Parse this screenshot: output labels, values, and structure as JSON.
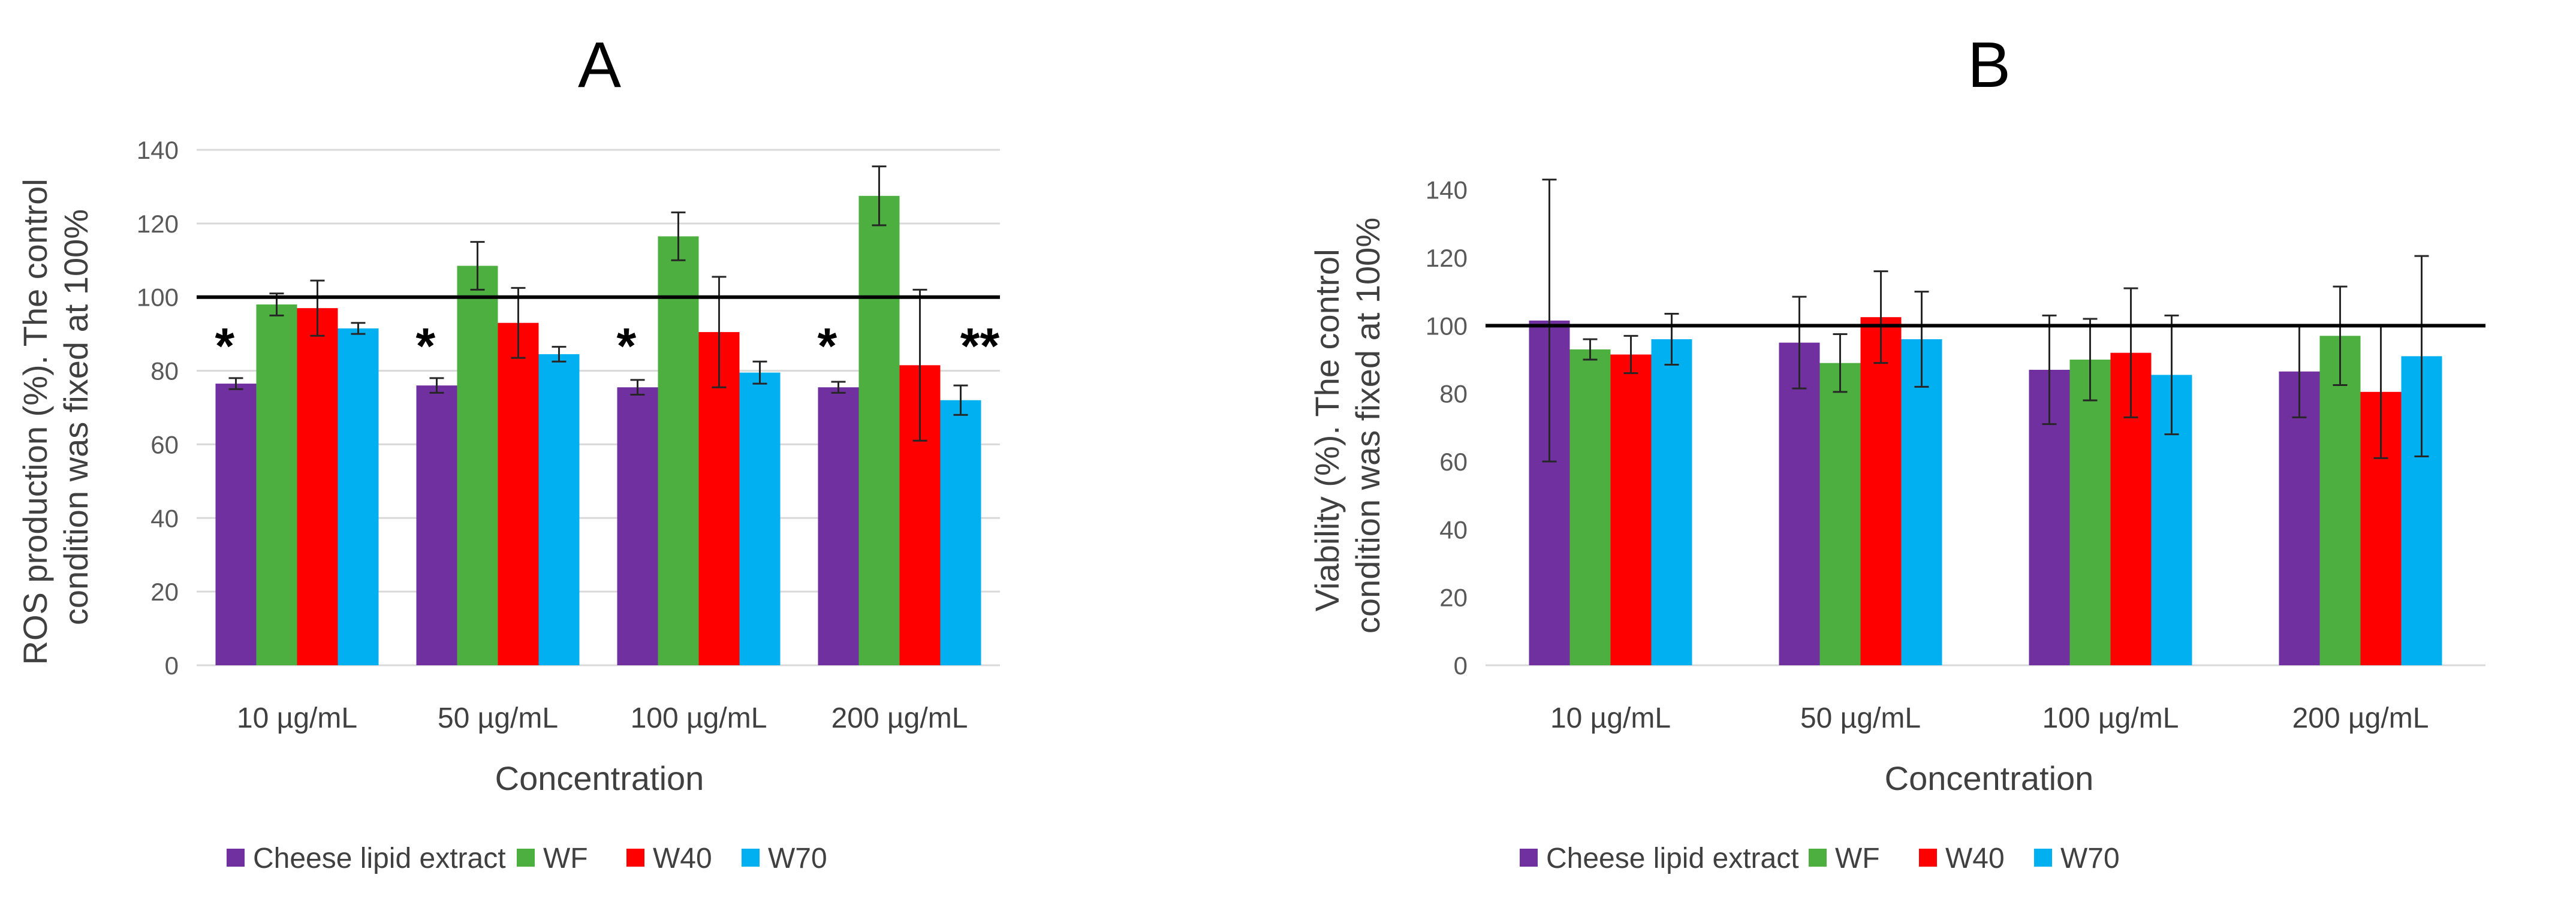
{
  "chart_data": [
    {
      "type": "bar",
      "panel": "A",
      "title": "A",
      "xlabel": "Concentration",
      "ylabel_lines": [
        "ROS production (%). The control",
        "condition was fixed at 100%"
      ],
      "categories": [
        "10 µg/mL",
        "50 µg/mL",
        "100 µg/mL",
        "200 µg/mL"
      ],
      "ylim": [
        0,
        140
      ],
      "yticks": [
        "0",
        "20",
        "40",
        "60",
        "80",
        "100",
        "120",
        "140"
      ],
      "reference_line": 100,
      "grid": true,
      "series": [
        {
          "name": "Cheese lipid extract",
          "color": "#7030a0",
          "values": [
            76.5,
            76,
            75.5,
            75.5
          ],
          "errors": [
            1.5,
            2,
            2,
            1.5
          ]
        },
        {
          "name": "WF",
          "color": "#4caf3f",
          "values": [
            98,
            108.5,
            116.5,
            127.5
          ],
          "errors": [
            3,
            6.5,
            6.5,
            8
          ]
        },
        {
          "name": "W40",
          "color": "#ff0000",
          "values": [
            97,
            93,
            90.5,
            81.5
          ],
          "errors": [
            7.5,
            9.5,
            15,
            20.5
          ]
        },
        {
          "name": "W70",
          "color": "#00b0f0",
          "values": [
            91.5,
            84.5,
            79.5,
            72
          ],
          "errors": [
            1.5,
            2,
            3,
            4
          ]
        }
      ],
      "annotations": [
        {
          "category": "10 µg/mL",
          "text": "*"
        },
        {
          "category": "50 µg/mL",
          "text": "*"
        },
        {
          "category": "100 µg/mL",
          "text": "*"
        },
        {
          "category": "200 µg/mL",
          "text": "*"
        },
        {
          "category": "200 µg/mL",
          "text": "**"
        }
      ],
      "legend": {
        "position": "bottom"
      }
    },
    {
      "type": "bar",
      "panel": "B",
      "title": "B",
      "xlabel": "Concentration",
      "ylabel_lines": [
        "Viability (%). The control",
        "condition was fixed at 100%"
      ],
      "categories": [
        "10 µg/mL",
        "50 µg/mL",
        "100 µg/mL",
        "200 µg/mL"
      ],
      "ylim": [
        0,
        150
      ],
      "yticks": [
        "0",
        "20",
        "40",
        "60",
        "80",
        "100",
        "120",
        "140"
      ],
      "reference_line": 100,
      "grid": false,
      "series": [
        {
          "name": "Cheese lipid extract",
          "color": "#7030a0",
          "values": [
            101.5,
            95,
            87,
            86.5
          ],
          "errors": [
            41.5,
            13.5,
            16,
            13.5
          ]
        },
        {
          "name": "WF",
          "color": "#4caf3f",
          "values": [
            93,
            89,
            90,
            97
          ],
          "errors": [
            3,
            8.5,
            12,
            14.5
          ]
        },
        {
          "name": "W40",
          "color": "#ff0000",
          "values": [
            91.5,
            102.5,
            92,
            80.5
          ],
          "errors": [
            5.5,
            13.5,
            19,
            19.5
          ]
        },
        {
          "name": "W70",
          "color": "#00b0f0",
          "values": [
            96,
            96,
            85.5,
            91
          ],
          "errors": [
            7.5,
            14,
            17.5,
            29.5
          ]
        }
      ],
      "annotations": [],
      "legend": {
        "position": "bottom"
      }
    }
  ]
}
